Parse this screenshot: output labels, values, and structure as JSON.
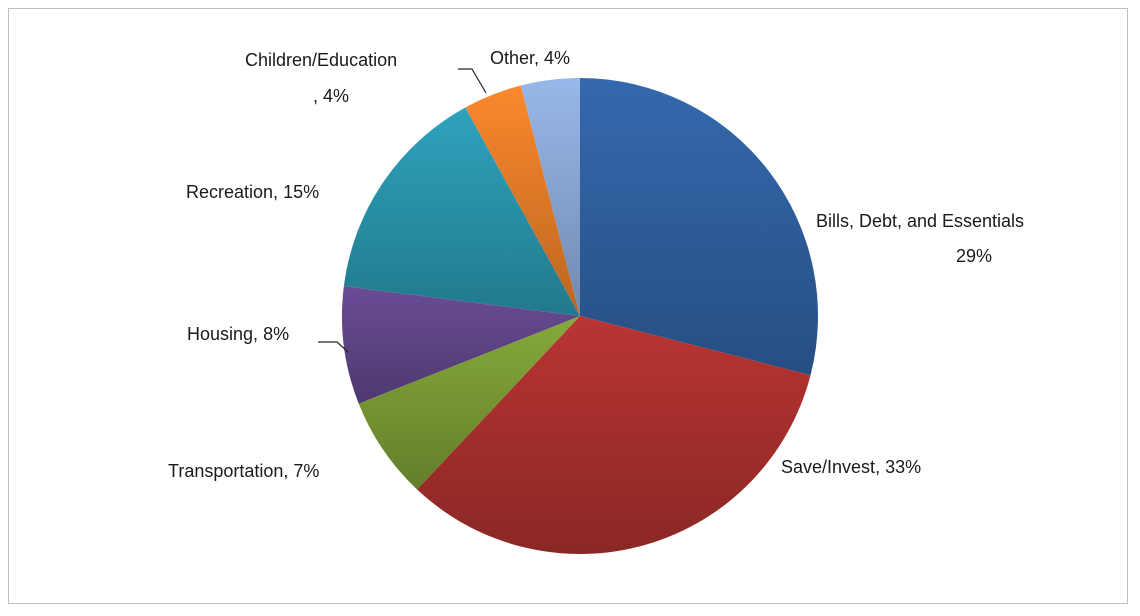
{
  "chart_data": {
    "type": "pie",
    "title": "",
    "legend": "none",
    "slices": [
      {
        "label": "Bills, Debt, and Essentials",
        "value": 29,
        "value_label": "29%",
        "color": "#2f5f9e"
      },
      {
        "label": "Save/Invest",
        "value": 33,
        "value_label": "33%",
        "color": "#a8302d"
      },
      {
        "label": "Transportation",
        "value": 7,
        "value_label": "7%",
        "color": "#7a9a35"
      },
      {
        "label": "Housing",
        "value": 8,
        "value_label": "8%",
        "color": "#5f4587"
      },
      {
        "label": "Recreation",
        "value": 15,
        "value_label": "15%",
        "color": "#2a94ab"
      },
      {
        "label": "Children/Education",
        "value": 4,
        "value_label": "4%",
        "color": "#e47c28"
      },
      {
        "label": "Other",
        "value": 4,
        "value_label": "4%",
        "color": "#8aa7d6"
      }
    ]
  }
}
